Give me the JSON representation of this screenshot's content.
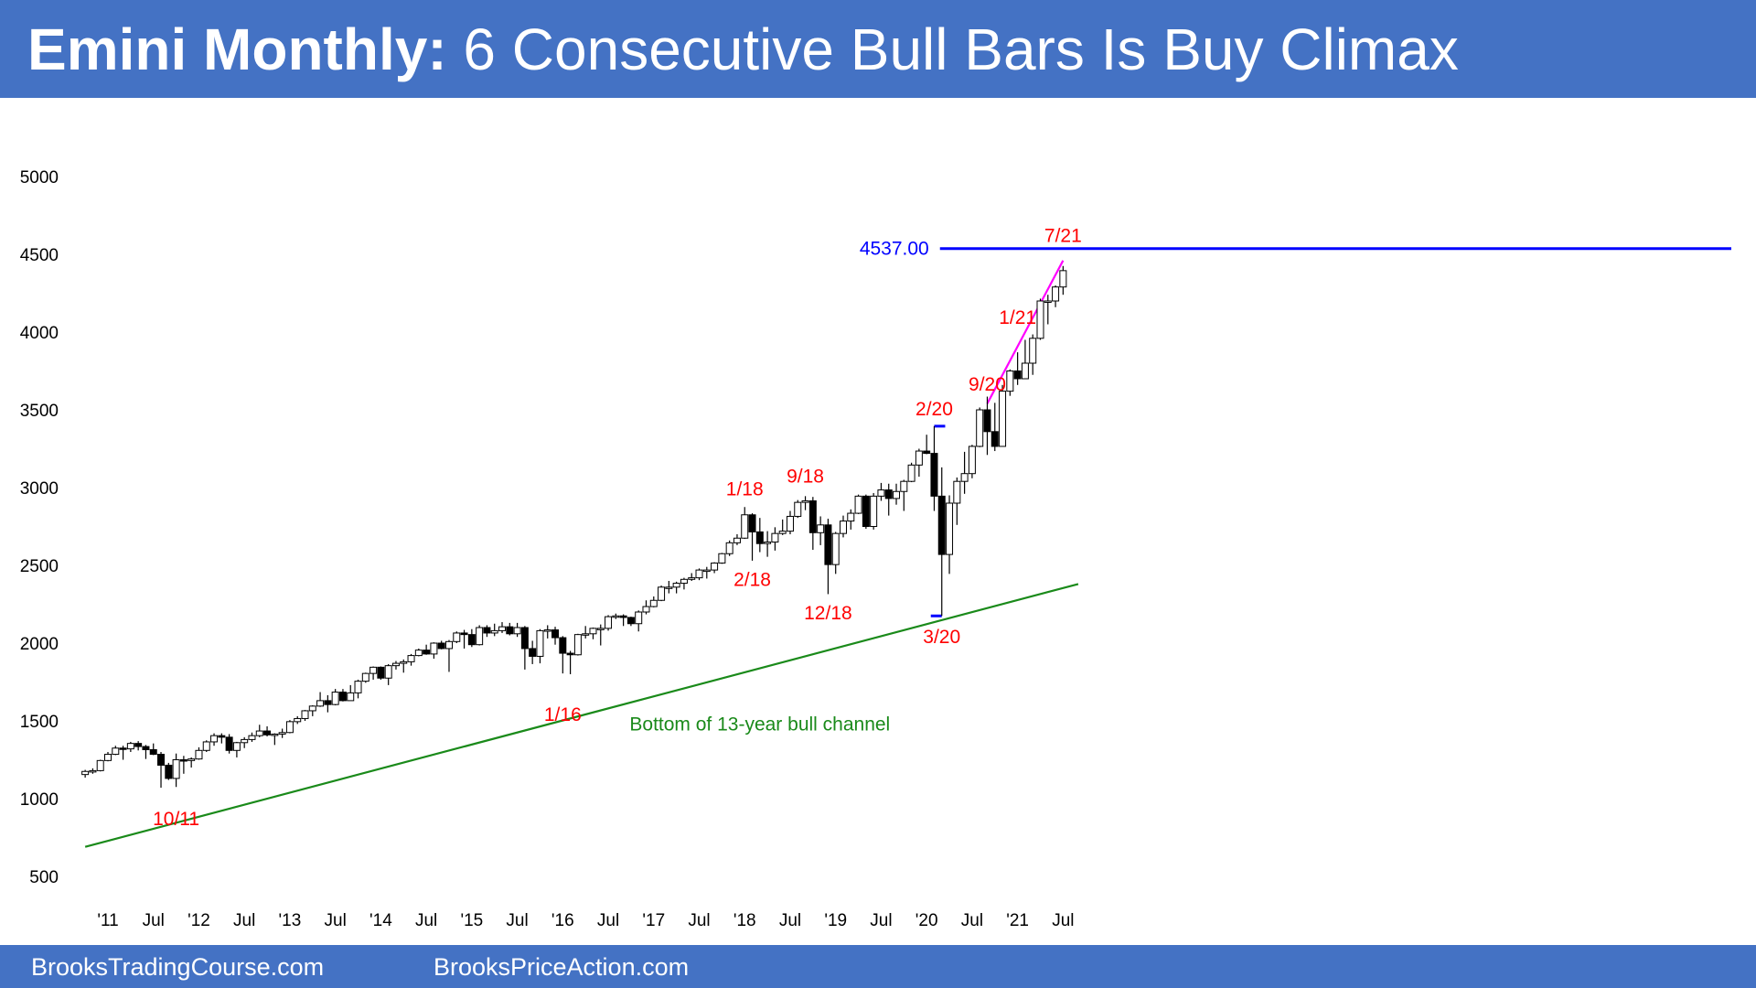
{
  "header": {
    "title_bold": "Emini Monthly:",
    "title_rest": " 6 Consecutive Bull Bars Is Buy Climax"
  },
  "footer": {
    "left_link": "BrooksTradingCourse.com",
    "right_link": "BrooksPriceAction.com"
  },
  "colors": {
    "header_bg": "#4472c4",
    "annotation_red": "#ff0000",
    "level_blue": "#0000ff",
    "channel_green": "#1a8a1a",
    "climax_line": "#ff00ff"
  },
  "chart_data": {
    "type": "candlestick",
    "title": "Emini Monthly",
    "ylim": [
      500,
      5000
    ],
    "y_ticks": [
      500,
      1000,
      1500,
      2000,
      2500,
      3000,
      3500,
      4000,
      4500,
      5000
    ],
    "x_ticks": [
      {
        "label": "'11",
        "x": "2011-01"
      },
      {
        "label": "Jul",
        "x": "2011-07"
      },
      {
        "label": "'12",
        "x": "2012-01"
      },
      {
        "label": "Jul",
        "x": "2012-07"
      },
      {
        "label": "'13",
        "x": "2013-01"
      },
      {
        "label": "Jul",
        "x": "2013-07"
      },
      {
        "label": "'14",
        "x": "2014-01"
      },
      {
        "label": "Jul",
        "x": "2014-07"
      },
      {
        "label": "'15",
        "x": "2015-01"
      },
      {
        "label": "Jul",
        "x": "2015-07"
      },
      {
        "label": "'16",
        "x": "2016-01"
      },
      {
        "label": "Jul",
        "x": "2016-07"
      },
      {
        "label": "'17",
        "x": "2017-01"
      },
      {
        "label": "Jul",
        "x": "2017-07"
      },
      {
        "label": "'18",
        "x": "2018-01"
      },
      {
        "label": "Jul",
        "x": "2018-07"
      },
      {
        "label": "'19",
        "x": "2019-01"
      },
      {
        "label": "Jul",
        "x": "2019-07"
      },
      {
        "label": "'20",
        "x": "2020-01"
      },
      {
        "label": "Jul",
        "x": "2020-07"
      },
      {
        "label": "'21",
        "x": "2021-01"
      },
      {
        "label": "Jul",
        "x": "2021-07"
      }
    ],
    "candles": [
      {
        "x": "2010-10",
        "o": 1155,
        "h": 1185,
        "l": 1135,
        "c": 1175
      },
      {
        "x": "2010-11",
        "o": 1175,
        "h": 1195,
        "l": 1160,
        "c": 1180
      },
      {
        "x": "2010-12",
        "o": 1180,
        "h": 1250,
        "l": 1175,
        "c": 1245
      },
      {
        "x": "2011-01",
        "o": 1245,
        "h": 1300,
        "l": 1240,
        "c": 1285
      },
      {
        "x": "2011-02",
        "o": 1285,
        "h": 1340,
        "l": 1280,
        "c": 1325
      },
      {
        "x": "2011-03",
        "o": 1325,
        "h": 1340,
        "l": 1250,
        "c": 1320
      },
      {
        "x": "2011-04",
        "o": 1320,
        "h": 1365,
        "l": 1300,
        "c": 1355
      },
      {
        "x": "2011-05",
        "o": 1355,
        "h": 1370,
        "l": 1310,
        "c": 1335
      },
      {
        "x": "2011-06",
        "o": 1335,
        "h": 1345,
        "l": 1255,
        "c": 1315
      },
      {
        "x": "2011-07",
        "o": 1315,
        "h": 1355,
        "l": 1280,
        "c": 1285
      },
      {
        "x": "2011-08",
        "o": 1285,
        "h": 1300,
        "l": 1070,
        "c": 1215
      },
      {
        "x": "2011-09",
        "o": 1215,
        "h": 1230,
        "l": 1120,
        "c": 1130
      },
      {
        "x": "2011-10",
        "o": 1130,
        "h": 1290,
        "l": 1075,
        "c": 1250
      },
      {
        "x": "2011-11",
        "o": 1250,
        "h": 1275,
        "l": 1160,
        "c": 1245
      },
      {
        "x": "2011-12",
        "o": 1245,
        "h": 1265,
        "l": 1200,
        "c": 1255
      },
      {
        "x": "2012-01",
        "o": 1255,
        "h": 1330,
        "l": 1250,
        "c": 1310
      },
      {
        "x": "2012-02",
        "o": 1310,
        "h": 1375,
        "l": 1300,
        "c": 1365
      },
      {
        "x": "2012-03",
        "o": 1365,
        "h": 1420,
        "l": 1340,
        "c": 1405
      },
      {
        "x": "2012-04",
        "o": 1405,
        "h": 1420,
        "l": 1355,
        "c": 1395
      },
      {
        "x": "2012-05",
        "o": 1395,
        "h": 1415,
        "l": 1290,
        "c": 1310
      },
      {
        "x": "2012-06",
        "o": 1310,
        "h": 1365,
        "l": 1265,
        "c": 1360
      },
      {
        "x": "2012-07",
        "o": 1360,
        "h": 1395,
        "l": 1325,
        "c": 1380
      },
      {
        "x": "2012-08",
        "o": 1380,
        "h": 1425,
        "l": 1365,
        "c": 1405
      },
      {
        "x": "2012-09",
        "o": 1405,
        "h": 1475,
        "l": 1395,
        "c": 1435
      },
      {
        "x": "2012-10",
        "o": 1435,
        "h": 1465,
        "l": 1400,
        "c": 1410
      },
      {
        "x": "2012-11",
        "o": 1410,
        "h": 1420,
        "l": 1345,
        "c": 1415
      },
      {
        "x": "2012-12",
        "o": 1415,
        "h": 1450,
        "l": 1390,
        "c": 1425
      },
      {
        "x": "2013-01",
        "o": 1425,
        "h": 1505,
        "l": 1420,
        "c": 1495
      },
      {
        "x": "2013-02",
        "o": 1495,
        "h": 1530,
        "l": 1480,
        "c": 1515
      },
      {
        "x": "2013-03",
        "o": 1515,
        "h": 1570,
        "l": 1500,
        "c": 1565
      },
      {
        "x": "2013-04",
        "o": 1565,
        "h": 1600,
        "l": 1530,
        "c": 1595
      },
      {
        "x": "2013-05",
        "o": 1595,
        "h": 1685,
        "l": 1590,
        "c": 1630
      },
      {
        "x": "2013-06",
        "o": 1630,
        "h": 1665,
        "l": 1555,
        "c": 1605
      },
      {
        "x": "2013-07",
        "o": 1605,
        "h": 1705,
        "l": 1600,
        "c": 1685
      },
      {
        "x": "2013-08",
        "o": 1685,
        "h": 1705,
        "l": 1625,
        "c": 1630
      },
      {
        "x": "2013-09",
        "o": 1630,
        "h": 1730,
        "l": 1630,
        "c": 1680
      },
      {
        "x": "2013-10",
        "o": 1680,
        "h": 1765,
        "l": 1645,
        "c": 1755
      },
      {
        "x": "2013-11",
        "o": 1755,
        "h": 1810,
        "l": 1745,
        "c": 1805
      },
      {
        "x": "2013-12",
        "o": 1805,
        "h": 1850,
        "l": 1765,
        "c": 1845
      },
      {
        "x": "2014-01",
        "o": 1845,
        "h": 1850,
        "l": 1765,
        "c": 1775
      },
      {
        "x": "2014-02",
        "o": 1775,
        "h": 1865,
        "l": 1730,
        "c": 1855
      },
      {
        "x": "2014-03",
        "o": 1855,
        "h": 1885,
        "l": 1830,
        "c": 1870
      },
      {
        "x": "2014-04",
        "o": 1870,
        "h": 1895,
        "l": 1810,
        "c": 1880
      },
      {
        "x": "2014-05",
        "o": 1880,
        "h": 1930,
        "l": 1855,
        "c": 1920
      },
      {
        "x": "2014-06",
        "o": 1920,
        "h": 1965,
        "l": 1915,
        "c": 1955
      },
      {
        "x": "2014-07",
        "o": 1955,
        "h": 1990,
        "l": 1925,
        "c": 1930
      },
      {
        "x": "2014-08",
        "o": 1930,
        "h": 2005,
        "l": 1900,
        "c": 2000
      },
      {
        "x": "2014-09",
        "o": 2000,
        "h": 2015,
        "l": 1960,
        "c": 1965
      },
      {
        "x": "2014-10",
        "o": 1965,
        "h": 2020,
        "l": 1815,
        "c": 2010
      },
      {
        "x": "2014-11",
        "o": 2010,
        "h": 2075,
        "l": 2000,
        "c": 2065
      },
      {
        "x": "2014-12",
        "o": 2065,
        "h": 2085,
        "l": 1965,
        "c": 2055
      },
      {
        "x": "2015-01",
        "o": 2055,
        "h": 2090,
        "l": 1975,
        "c": 1990
      },
      {
        "x": "2015-02",
        "o": 1990,
        "h": 2115,
        "l": 1985,
        "c": 2100
      },
      {
        "x": "2015-03",
        "o": 2100,
        "h": 2115,
        "l": 2040,
        "c": 2065
      },
      {
        "x": "2015-04",
        "o": 2065,
        "h": 2125,
        "l": 2045,
        "c": 2080
      },
      {
        "x": "2015-05",
        "o": 2080,
        "h": 2135,
        "l": 2065,
        "c": 2105
      },
      {
        "x": "2015-06",
        "o": 2105,
        "h": 2130,
        "l": 2050,
        "c": 2060
      },
      {
        "x": "2015-07",
        "o": 2060,
        "h": 2130,
        "l": 2040,
        "c": 2100
      },
      {
        "x": "2015-08",
        "o": 2100,
        "h": 2110,
        "l": 1830,
        "c": 1965
      },
      {
        "x": "2015-09",
        "o": 1965,
        "h": 2015,
        "l": 1865,
        "c": 1915
      },
      {
        "x": "2015-10",
        "o": 1915,
        "h": 2090,
        "l": 1870,
        "c": 2080
      },
      {
        "x": "2015-11",
        "o": 2080,
        "h": 2115,
        "l": 2030,
        "c": 2085
      },
      {
        "x": "2015-12",
        "o": 2085,
        "h": 2105,
        "l": 1990,
        "c": 2035
      },
      {
        "x": "2016-01",
        "o": 2035,
        "h": 2045,
        "l": 1805,
        "c": 1935
      },
      {
        "x": "2016-02",
        "o": 1935,
        "h": 1950,
        "l": 1800,
        "c": 1925
      },
      {
        "x": "2016-03",
        "o": 1925,
        "h": 2060,
        "l": 1920,
        "c": 2055
      },
      {
        "x": "2016-04",
        "o": 2055,
        "h": 2110,
        "l": 2030,
        "c": 2060
      },
      {
        "x": "2016-05",
        "o": 2060,
        "h": 2100,
        "l": 2025,
        "c": 2095
      },
      {
        "x": "2016-06",
        "o": 2095,
        "h": 2120,
        "l": 1985,
        "c": 2095
      },
      {
        "x": "2016-07",
        "o": 2095,
        "h": 2180,
        "l": 2080,
        "c": 2170
      },
      {
        "x": "2016-08",
        "o": 2170,
        "h": 2190,
        "l": 2155,
        "c": 2175
      },
      {
        "x": "2016-09",
        "o": 2175,
        "h": 2185,
        "l": 2110,
        "c": 2165
      },
      {
        "x": "2016-10",
        "o": 2165,
        "h": 2170,
        "l": 2110,
        "c": 2125
      },
      {
        "x": "2016-11",
        "o": 2125,
        "h": 2210,
        "l": 2075,
        "c": 2200
      },
      {
        "x": "2016-12",
        "o": 2200,
        "h": 2275,
        "l": 2185,
        "c": 2235
      },
      {
        "x": "2017-01",
        "o": 2235,
        "h": 2300,
        "l": 2230,
        "c": 2275
      },
      {
        "x": "2017-02",
        "o": 2275,
        "h": 2370,
        "l": 2270,
        "c": 2360
      },
      {
        "x": "2017-03",
        "o": 2360,
        "h": 2400,
        "l": 2320,
        "c": 2360
      },
      {
        "x": "2017-04",
        "o": 2360,
        "h": 2395,
        "l": 2320,
        "c": 2385
      },
      {
        "x": "2017-05",
        "o": 2385,
        "h": 2420,
        "l": 2345,
        "c": 2410
      },
      {
        "x": "2017-06",
        "o": 2410,
        "h": 2450,
        "l": 2400,
        "c": 2420
      },
      {
        "x": "2017-07",
        "o": 2420,
        "h": 2480,
        "l": 2405,
        "c": 2470
      },
      {
        "x": "2017-08",
        "o": 2470,
        "h": 2490,
        "l": 2415,
        "c": 2470
      },
      {
        "x": "2017-09",
        "o": 2470,
        "h": 2520,
        "l": 2450,
        "c": 2515
      },
      {
        "x": "2017-10",
        "o": 2515,
        "h": 2580,
        "l": 2510,
        "c": 2575
      },
      {
        "x": "2017-11",
        "o": 2575,
        "h": 2660,
        "l": 2560,
        "c": 2645
      },
      {
        "x": "2017-12",
        "o": 2645,
        "h": 2700,
        "l": 2630,
        "c": 2675
      },
      {
        "x": "2018-01",
        "o": 2675,
        "h": 2875,
        "l": 2670,
        "c": 2825
      },
      {
        "x": "2018-02",
        "o": 2825,
        "h": 2835,
        "l": 2530,
        "c": 2715
      },
      {
        "x": "2018-03",
        "o": 2715,
        "h": 2805,
        "l": 2585,
        "c": 2640
      },
      {
        "x": "2018-04",
        "o": 2640,
        "h": 2720,
        "l": 2555,
        "c": 2650
      },
      {
        "x": "2018-05",
        "o": 2650,
        "h": 2745,
        "l": 2595,
        "c": 2705
      },
      {
        "x": "2018-06",
        "o": 2705,
        "h": 2795,
        "l": 2695,
        "c": 2720
      },
      {
        "x": "2018-07",
        "o": 2720,
        "h": 2850,
        "l": 2700,
        "c": 2815
      },
      {
        "x": "2018-08",
        "o": 2815,
        "h": 2920,
        "l": 2805,
        "c": 2905
      },
      {
        "x": "2018-09",
        "o": 2905,
        "h": 2945,
        "l": 2855,
        "c": 2915
      },
      {
        "x": "2018-10",
        "o": 2915,
        "h": 2940,
        "l": 2600,
        "c": 2710
      },
      {
        "x": "2018-11",
        "o": 2710,
        "h": 2815,
        "l": 2630,
        "c": 2760
      },
      {
        "x": "2018-12",
        "o": 2760,
        "h": 2800,
        "l": 2315,
        "c": 2505
      },
      {
        "x": "2019-01",
        "o": 2505,
        "h": 2715,
        "l": 2445,
        "c": 2705
      },
      {
        "x": "2019-02",
        "o": 2705,
        "h": 2820,
        "l": 2680,
        "c": 2785
      },
      {
        "x": "2019-03",
        "o": 2785,
        "h": 2860,
        "l": 2730,
        "c": 2835
      },
      {
        "x": "2019-04",
        "o": 2835,
        "h": 2955,
        "l": 2830,
        "c": 2945
      },
      {
        "x": "2019-05",
        "o": 2945,
        "h": 2955,
        "l": 2735,
        "c": 2750
      },
      {
        "x": "2019-06",
        "o": 2750,
        "h": 2965,
        "l": 2730,
        "c": 2945
      },
      {
        "x": "2019-07",
        "o": 2945,
        "h": 3030,
        "l": 2915,
        "c": 2985
      },
      {
        "x": "2019-08",
        "o": 2985,
        "h": 3025,
        "l": 2820,
        "c": 2930
      },
      {
        "x": "2019-09",
        "o": 2930,
        "h": 3025,
        "l": 2890,
        "c": 2975
      },
      {
        "x": "2019-10",
        "o": 2975,
        "h": 3050,
        "l": 2850,
        "c": 3040
      },
      {
        "x": "2019-11",
        "o": 3040,
        "h": 3160,
        "l": 3035,
        "c": 3145
      },
      {
        "x": "2019-12",
        "o": 3145,
        "h": 3250,
        "l": 3070,
        "c": 3235
      },
      {
        "x": "2020-01",
        "o": 3235,
        "h": 3340,
        "l": 3215,
        "c": 3220
      },
      {
        "x": "2020-02",
        "o": 3220,
        "h": 3395,
        "l": 2850,
        "c": 2945
      },
      {
        "x": "2020-03",
        "o": 2945,
        "h": 3130,
        "l": 2175,
        "c": 2570
      },
      {
        "x": "2020-04",
        "o": 2570,
        "h": 2950,
        "l": 2445,
        "c": 2900
      },
      {
        "x": "2020-05",
        "o": 2900,
        "h": 3065,
        "l": 2760,
        "c": 3040
      },
      {
        "x": "2020-06",
        "o": 3040,
        "h": 3230,
        "l": 2960,
        "c": 3090
      },
      {
        "x": "2020-07",
        "o": 3090,
        "h": 3275,
        "l": 3060,
        "c": 3265
      },
      {
        "x": "2020-08",
        "o": 3265,
        "h": 3515,
        "l": 3260,
        "c": 3500
      },
      {
        "x": "2020-09",
        "o": 3500,
        "h": 3585,
        "l": 3210,
        "c": 3360
      },
      {
        "x": "2020-10",
        "o": 3360,
        "h": 3545,
        "l": 3235,
        "c": 3265
      },
      {
        "x": "2020-11",
        "o": 3265,
        "h": 3660,
        "l": 3270,
        "c": 3620
      },
      {
        "x": "2020-12",
        "o": 3620,
        "h": 3760,
        "l": 3590,
        "c": 3750
      },
      {
        "x": "2021-01",
        "o": 3750,
        "h": 3870,
        "l": 3660,
        "c": 3700
      },
      {
        "x": "2021-02",
        "o": 3700,
        "h": 3950,
        "l": 3710,
        "c": 3800
      },
      {
        "x": "2021-03",
        "o": 3800,
        "h": 3985,
        "l": 3725,
        "c": 3960
      },
      {
        "x": "2021-04",
        "o": 3960,
        "h": 4215,
        "l": 3950,
        "c": 4200
      },
      {
        "x": "2021-05",
        "o": 4200,
        "h": 4240,
        "l": 4050,
        "c": 4200
      },
      {
        "x": "2021-06",
        "o": 4200,
        "h": 4300,
        "l": 4160,
        "c": 4290
      },
      {
        "x": "2021-07",
        "o": 4290,
        "h": 4425,
        "l": 4240,
        "c": 4395
      }
    ],
    "horizontal_levels": [
      {
        "label": "4537.00",
        "y": 4537,
        "from_x": "2020-03",
        "to_x": "2021-09",
        "color": "#0000ff"
      }
    ],
    "reference_lines": [
      {
        "label": "Bottom of 13-year bull channel",
        "color": "#1a8a1a",
        "from": {
          "x": "2010-10",
          "y": 690
        },
        "to": {
          "x": "2021-09",
          "y": 2380
        }
      },
      {
        "label": "",
        "color": "#ff00ff",
        "from": {
          "x": "2020-09",
          "y": 3540
        },
        "to": {
          "x": "2021-07",
          "y": 4460
        }
      }
    ],
    "annotations": [
      {
        "text": "10/11",
        "x": "2011-10",
        "y": 870,
        "color": "#ff0000"
      },
      {
        "text": "1/16",
        "x": "2016-01",
        "y": 1540,
        "color": "#ff0000"
      },
      {
        "text": "1/18",
        "x": "2018-01",
        "y": 2990,
        "color": "#ff0000"
      },
      {
        "text": "2/18",
        "x": "2018-02",
        "y": 2410,
        "color": "#ff0000"
      },
      {
        "text": "9/18",
        "x": "2018-09",
        "y": 3075,
        "color": "#ff0000"
      },
      {
        "text": "12/18",
        "x": "2018-12",
        "y": 2195,
        "color": "#ff0000"
      },
      {
        "text": "2/20",
        "x": "2020-02",
        "y": 3505,
        "color": "#ff0000"
      },
      {
        "text": "3/20",
        "x": "2020-03",
        "y": 2040,
        "color": "#ff0000"
      },
      {
        "text": "9/20",
        "x": "2020-09",
        "y": 3665,
        "color": "#ff0000"
      },
      {
        "text": "1/21",
        "x": "2021-01",
        "y": 4095,
        "color": "#ff0000"
      },
      {
        "text": "7/21",
        "x": "2021-07",
        "y": 4620,
        "color": "#ff0000"
      },
      {
        "text": "Bottom of 13-year bull channel",
        "x": "2018-03",
        "y": 1480,
        "color": "#1a8a1a"
      }
    ]
  }
}
